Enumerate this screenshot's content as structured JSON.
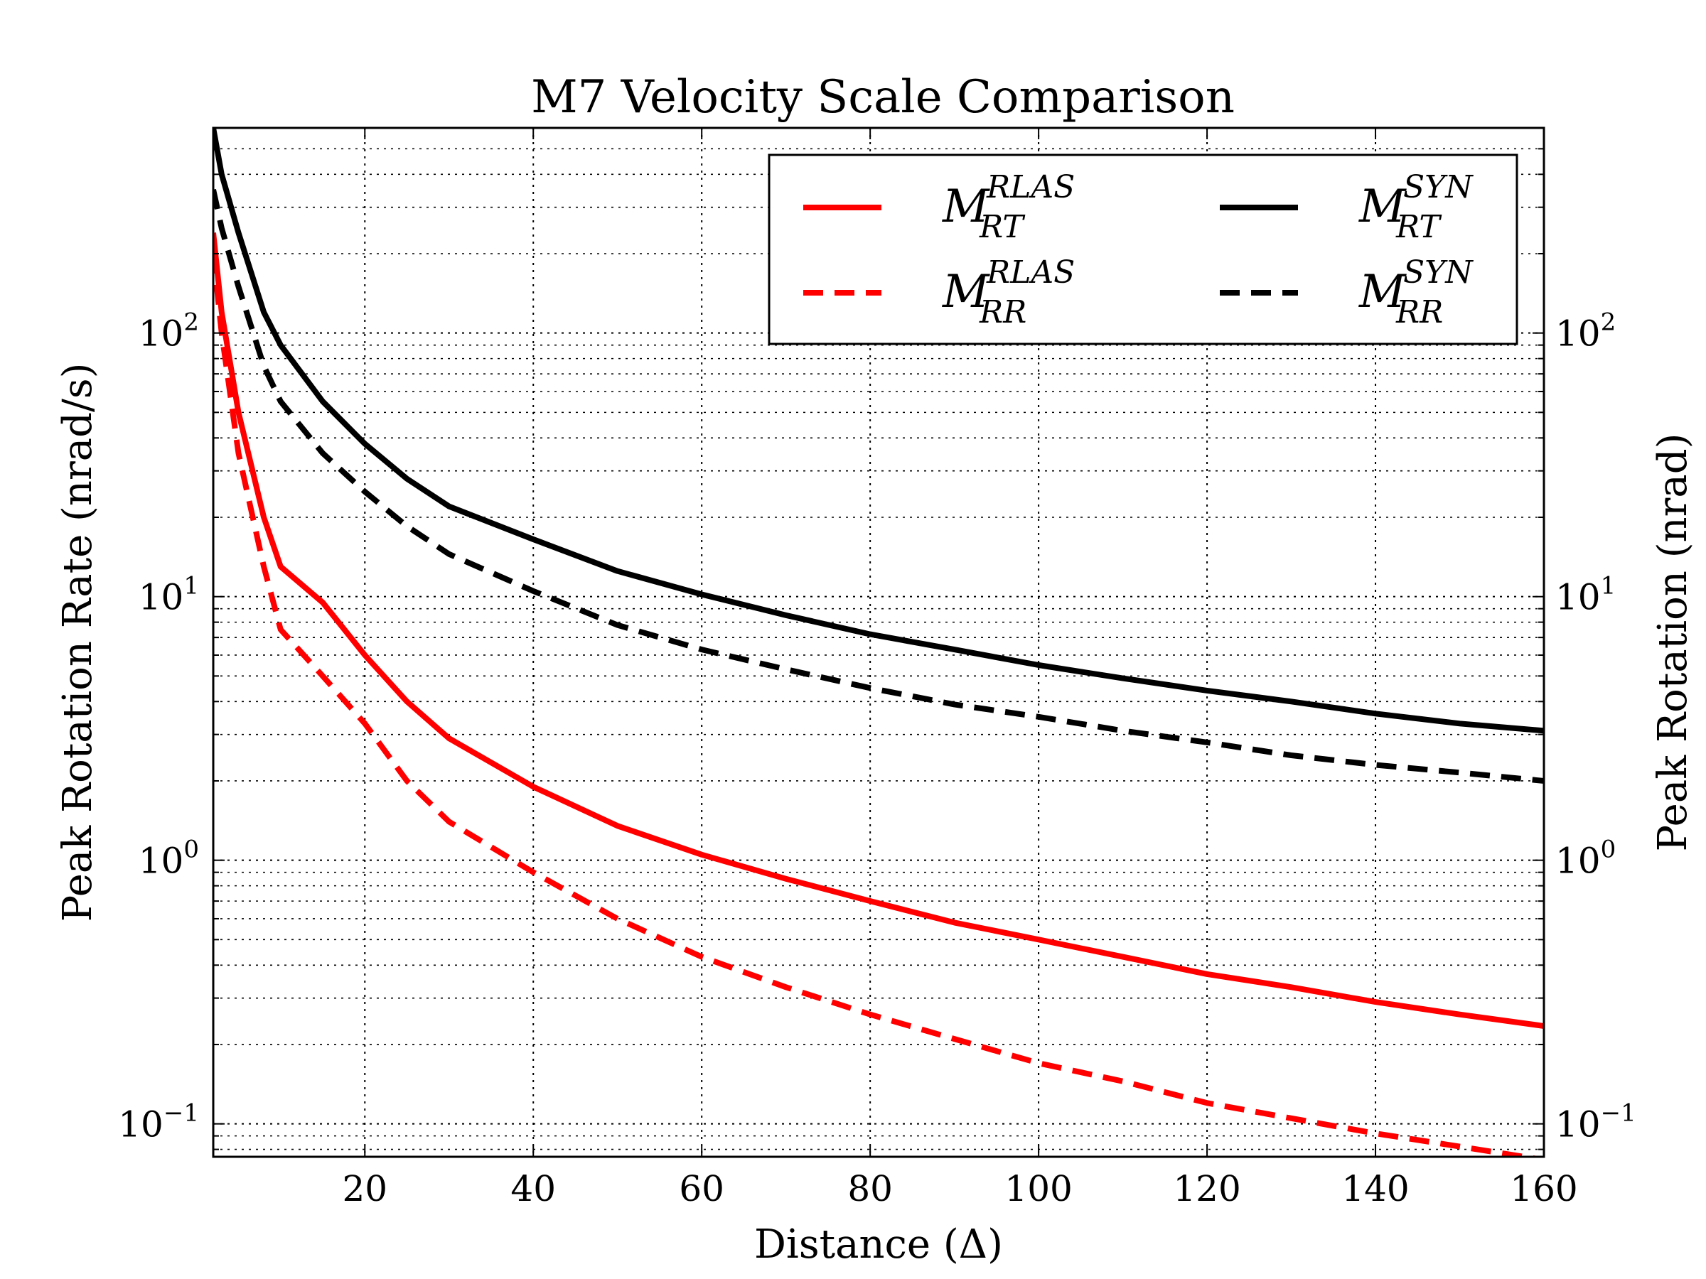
{
  "chart_data": {
    "type": "line",
    "title": "M7 Velocity Scale Comparison",
    "xlabel": "Distance (Δ)",
    "ylabel": "Peak Rotation Rate (nrad/s)",
    "ylabel_right": "Peak Rotation (nrad)",
    "xlim": [
      2,
      160
    ],
    "ylim": [
      0.075,
      600
    ],
    "yscale": "log",
    "grid": true,
    "legend_position": "top-right",
    "x_ticks": [
      20,
      40,
      60,
      80,
      100,
      120,
      140,
      160
    ],
    "y_ticks": [
      {
        "value": 0.1,
        "base": "10",
        "exp": "−1"
      },
      {
        "value": 1,
        "base": "10",
        "exp": "0"
      },
      {
        "value": 10,
        "base": "10",
        "exp": "1"
      },
      {
        "value": 100,
        "base": "10",
        "exp": "2"
      }
    ],
    "series": [
      {
        "name": "M_RT^RLAS",
        "label_main": "M",
        "label_sup": "RLAS",
        "label_sub": "RT",
        "color": "#ff0000",
        "dash": "solid",
        "x": [
          2,
          3,
          5,
          8,
          10,
          15,
          20,
          25,
          30,
          40,
          50,
          60,
          70,
          80,
          90,
          100,
          110,
          120,
          130,
          140,
          150,
          160
        ],
        "y": [
          240,
          120,
          50,
          20,
          13,
          9.5,
          6.0,
          4.0,
          2.9,
          1.9,
          1.35,
          1.05,
          0.85,
          0.7,
          0.58,
          0.5,
          0.43,
          0.37,
          0.33,
          0.29,
          0.26,
          0.235
        ]
      },
      {
        "name": "M_RR^RLAS",
        "label_main": "M",
        "label_sup": "RLAS",
        "label_sub": "RR",
        "color": "#ff0000",
        "dash": "dashed",
        "x": [
          2,
          3,
          5,
          8,
          10,
          15,
          20,
          25,
          30,
          40,
          50,
          60,
          70,
          80,
          90,
          100,
          110,
          120,
          130,
          140,
          150,
          160
        ],
        "y": [
          200,
          100,
          35,
          13,
          7.5,
          5.0,
          3.3,
          2.0,
          1.4,
          0.9,
          0.6,
          0.43,
          0.33,
          0.26,
          0.21,
          0.17,
          0.145,
          0.12,
          0.105,
          0.092,
          0.082,
          0.073
        ]
      },
      {
        "name": "M_RT^SYN",
        "label_main": "M",
        "label_sup": "SYN",
        "label_sub": "RT",
        "color": "#000000",
        "dash": "solid",
        "x": [
          2,
          3,
          5,
          8,
          10,
          15,
          20,
          25,
          30,
          40,
          50,
          60,
          70,
          80,
          90,
          100,
          110,
          120,
          130,
          140,
          150,
          160
        ],
        "y": [
          600,
          400,
          240,
          120,
          90,
          55,
          38,
          28,
          22,
          16.5,
          12.5,
          10.2,
          8.5,
          7.2,
          6.3,
          5.5,
          4.9,
          4.4,
          4.0,
          3.6,
          3.3,
          3.1
        ]
      },
      {
        "name": "M_RR^SYN",
        "label_main": "M",
        "label_sup": "SYN",
        "label_sub": "RR",
        "color": "#000000",
        "dash": "dashed",
        "x": [
          2,
          3,
          5,
          8,
          10,
          15,
          20,
          25,
          30,
          40,
          50,
          60,
          70,
          80,
          90,
          100,
          110,
          120,
          130,
          140,
          150,
          160
        ],
        "y": [
          350,
          250,
          150,
          75,
          55,
          35,
          25,
          18.5,
          14.5,
          10.5,
          7.8,
          6.3,
          5.3,
          4.5,
          3.9,
          3.5,
          3.1,
          2.8,
          2.5,
          2.3,
          2.15,
          2.0
        ]
      }
    ]
  }
}
